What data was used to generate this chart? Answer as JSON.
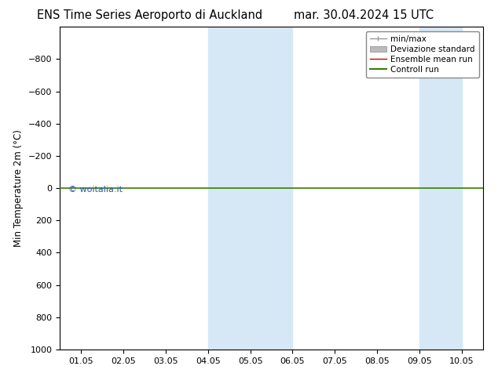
{
  "title_left": "ENS Time Series Aeroporto di Auckland",
  "title_right": "mar. 30.04.2024 15 UTC",
  "ylabel": "Min Temperature 2m (°C)",
  "watermark": "© woitalia.it",
  "ylim_bottom": 1000,
  "ylim_top": -1000,
  "yticks": [
    -800,
    -600,
    -400,
    -200,
    0,
    200,
    400,
    600,
    800,
    1000
  ],
  "x_tick_labels": [
    "01.05",
    "02.05",
    "03.05",
    "04.05",
    "05.05",
    "06.05",
    "07.05",
    "08.05",
    "09.05",
    "10.05"
  ],
  "x_tick_positions": [
    0,
    1,
    2,
    3,
    4,
    5,
    6,
    7,
    8,
    9
  ],
  "shaded_bands": [
    {
      "start": 3.0,
      "end": 4.0
    },
    {
      "start": 4.0,
      "end": 5.0
    },
    {
      "start": 8.0,
      "end": 9.0
    }
  ],
  "green_line_y": 0,
  "background_color": "#ffffff",
  "band_color": "#d6e8f5",
  "green_line_color": "#3a7d00",
  "legend_entries": [
    {
      "label": "min/max",
      "color": "#999999",
      "lw": 1.0
    },
    {
      "label": "Deviazione standard",
      "color": "#bbbbbb",
      "lw": 6
    },
    {
      "label": "Ensemble mean run",
      "color": "#cc0000",
      "lw": 1.0
    },
    {
      "label": "Controll run",
      "color": "#3a7d00",
      "lw": 1.5
    }
  ],
  "title_fontsize": 10.5,
  "axis_fontsize": 8.5,
  "tick_fontsize": 8,
  "watermark_color": "#2255cc"
}
